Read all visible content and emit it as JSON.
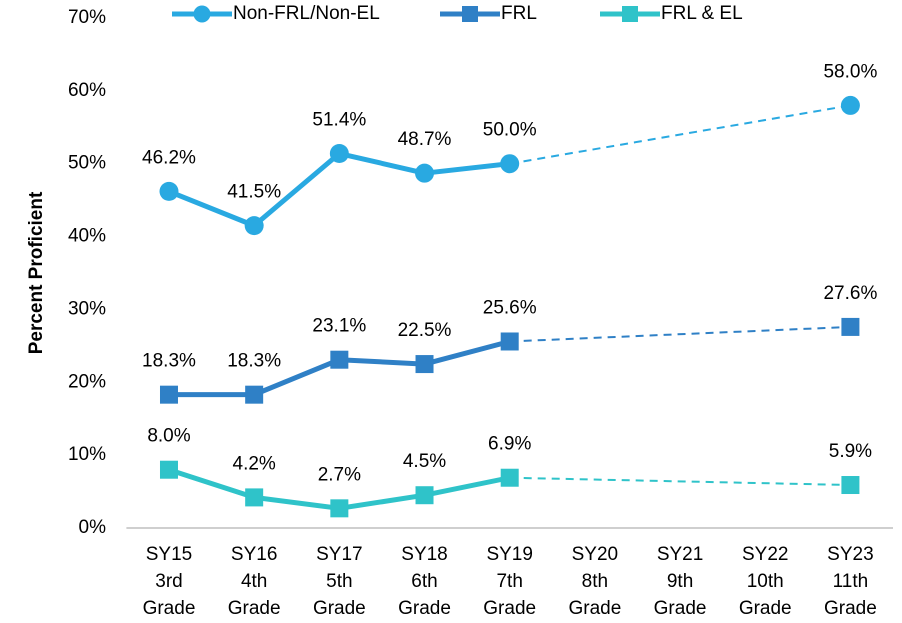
{
  "chart_data": {
    "type": "line",
    "y_label": "Percent Proficient",
    "categories": [
      [
        "SY15",
        "3rd",
        "Grade"
      ],
      [
        "SY16",
        "4th",
        "Grade"
      ],
      [
        "SY17",
        "5th",
        "Grade"
      ],
      [
        "SY18",
        "6th",
        "Grade"
      ],
      [
        "SY19",
        "7th",
        "Grade"
      ],
      [
        "SY20",
        "8th",
        "Grade"
      ],
      [
        "SY21",
        "9th",
        "Grade"
      ],
      [
        "SY22",
        "10th",
        "Grade"
      ],
      [
        "SY23",
        "11th",
        "Grade"
      ]
    ],
    "series": [
      {
        "name": "Non-FRL/Non-EL",
        "color": "#29a9e1",
        "marker": "circle",
        "values": [
          46.2,
          41.5,
          51.4,
          48.7,
          50.0,
          null,
          null,
          null,
          58.0
        ],
        "value_labels": [
          "46.2%",
          "41.5%",
          "51.4%",
          "48.7%",
          "50.0%",
          null,
          null,
          null,
          "58.0%"
        ]
      },
      {
        "name": "FRL",
        "color": "#2f80c6",
        "marker": "square",
        "values": [
          18.3,
          18.3,
          23.1,
          22.5,
          25.6,
          null,
          null,
          null,
          27.6
        ],
        "value_labels": [
          "18.3%",
          "18.3%",
          "23.1%",
          "22.5%",
          "25.6%",
          null,
          null,
          null,
          "27.6%"
        ]
      },
      {
        "name": "FRL & EL",
        "color": "#2fc3c9",
        "marker": "square",
        "values": [
          8.0,
          4.2,
          2.7,
          4.5,
          6.9,
          null,
          null,
          null,
          5.9
        ],
        "value_labels": [
          "8.0%",
          "4.2%",
          "2.7%",
          "4.5%",
          "6.9%",
          null,
          null,
          null,
          "5.9%"
        ]
      }
    ],
    "ylim": [
      0,
      70
    ],
    "yticks": [
      {
        "value": 0,
        "label": "0%"
      },
      {
        "value": 10,
        "label": "10%"
      },
      {
        "value": 20,
        "label": "20%"
      },
      {
        "value": 30,
        "label": "30%"
      },
      {
        "value": 40,
        "label": "40%"
      },
      {
        "value": 50,
        "label": "50%"
      },
      {
        "value": 60,
        "label": "60%"
      },
      {
        "value": 70,
        "label": "70%"
      }
    ],
    "grid": false,
    "legend": "top"
  }
}
